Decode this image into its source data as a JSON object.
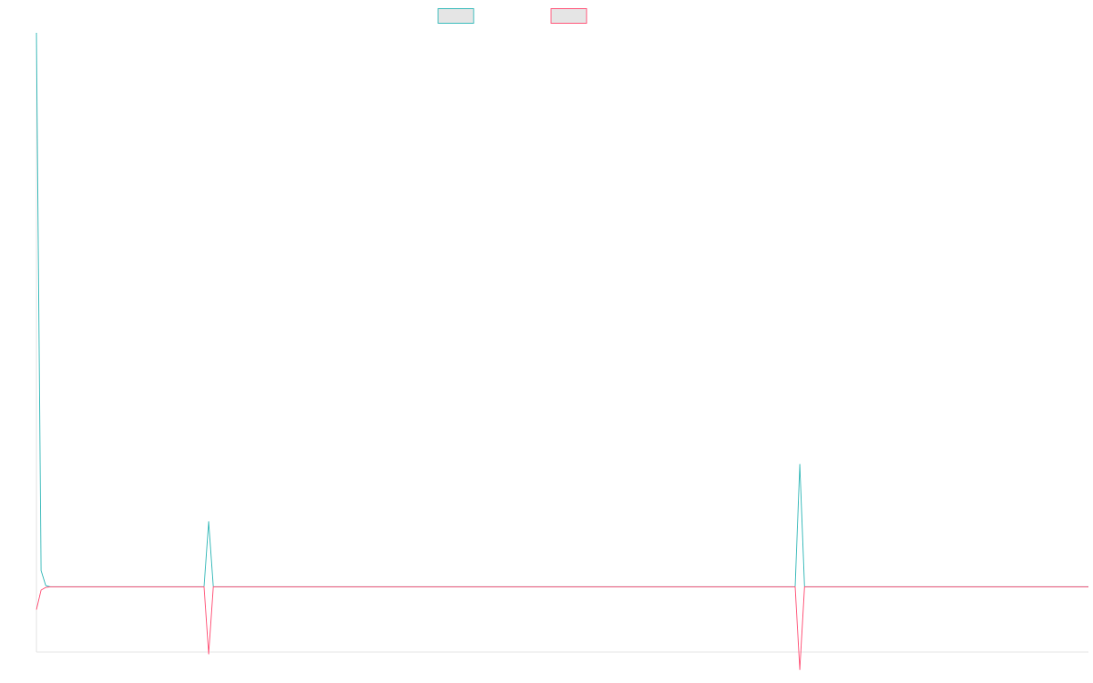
{
  "chart_data": {
    "type": "line",
    "title": "",
    "xlabel": "",
    "ylabel": "",
    "legend": "top-center",
    "grid": false,
    "x_count": 227,
    "xlim": [
      0,
      226
    ],
    "ylim": [
      -100,
      850
    ],
    "series": [
      {
        "name": "",
        "color": "#4bc0c0",
        "fill": "#e5e5e5",
        "points": [
          [
            0,
            850
          ],
          [
            1,
            25
          ],
          [
            2,
            2
          ],
          [
            3,
            0
          ],
          [
            36,
            0
          ],
          [
            37,
            100
          ],
          [
            38,
            0
          ],
          [
            163,
            0
          ],
          [
            164,
            188
          ],
          [
            165,
            0
          ],
          [
            226,
            0
          ]
        ]
      },
      {
        "name": "",
        "color": "#ff6384",
        "fill": "#e5e5e5",
        "points": [
          [
            0,
            -35
          ],
          [
            1,
            -5
          ],
          [
            2,
            -1
          ],
          [
            3,
            0
          ],
          [
            36,
            0
          ],
          [
            37,
            -103
          ],
          [
            38,
            0
          ],
          [
            163,
            0
          ],
          [
            164,
            -127
          ],
          [
            165,
            0
          ],
          [
            226,
            0
          ]
        ]
      }
    ]
  }
}
